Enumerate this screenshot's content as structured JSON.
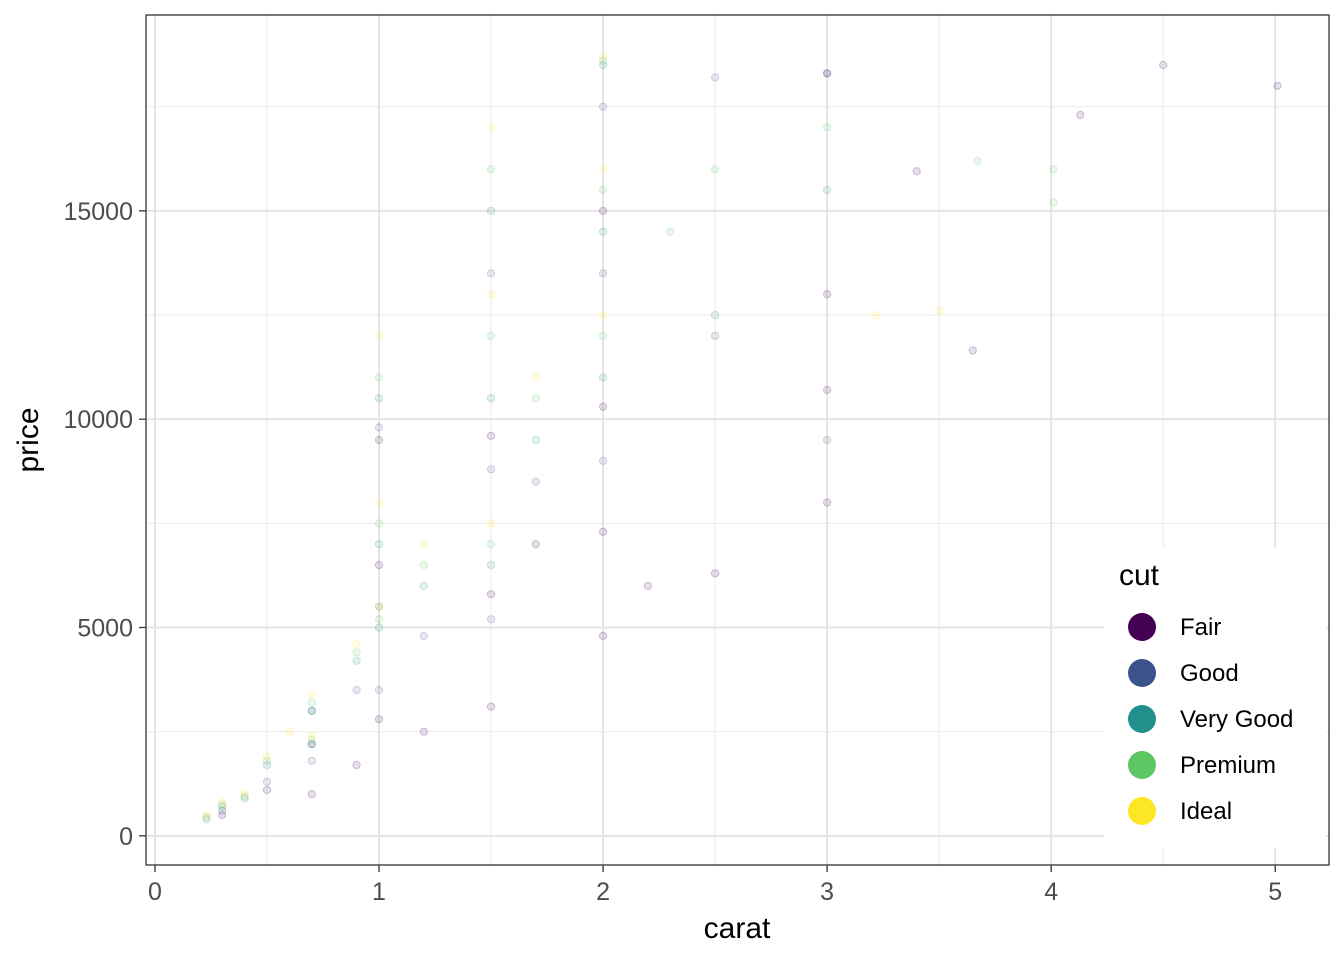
{
  "chart_data": {
    "type": "scatter",
    "title": "",
    "xlabel": "carat",
    "ylabel": "price",
    "xlim": [
      -0.04,
      5.24
    ],
    "ylim": [
      -700,
      19700
    ],
    "x_ticks": [
      0,
      1,
      2,
      3,
      4,
      5
    ],
    "x_tick_labels": [
      "0",
      "1",
      "2",
      "3",
      "4",
      "5"
    ],
    "y_ticks": [
      0,
      5000,
      10000,
      15000
    ],
    "y_tick_labels": [
      "0",
      "5000",
      "10000",
      "15000"
    ],
    "grid": true,
    "point_alpha": 0.12,
    "legend": {
      "title": "cut",
      "placement": "bottom-right inside",
      "entries": [
        {
          "name": "Fair",
          "color": "#440154"
        },
        {
          "name": "Good",
          "color": "#3B528B"
        },
        {
          "name": "Very Good",
          "color": "#21908C"
        },
        {
          "name": "Premium",
          "color": "#5DC863"
        },
        {
          "name": "Ideal",
          "color": "#FDE725"
        }
      ]
    },
    "series": [
      {
        "name": "Fair",
        "color": "#440154",
        "x": [
          0.3,
          0.5,
          0.7,
          0.7,
          0.9,
          1.0,
          1.0,
          1.0,
          1.2,
          1.5,
          1.5,
          1.5,
          1.7,
          2.0,
          2.0,
          2.0,
          2.0,
          2.2,
          2.5,
          3.0,
          3.0,
          3.0,
          3.0,
          3.4,
          3.65,
          4.13,
          4.5,
          5.01
        ],
        "y": [
          500,
          1100,
          1000,
          2200,
          1700,
          2800,
          6500,
          9500,
          2500,
          3100,
          5800,
          9600,
          7000,
          4800,
          7300,
          10300,
          15000,
          6000,
          6300,
          8000,
          10700,
          13000,
          18300,
          15950,
          11650,
          17300,
          18500,
          18000
        ]
      },
      {
        "name": "Good",
        "color": "#3B528B",
        "x": [
          0.3,
          0.5,
          0.7,
          0.7,
          0.9,
          1.0,
          1.0,
          1.0,
          1.2,
          1.5,
          1.5,
          1.5,
          1.7,
          2.0,
          2.0,
          2.0,
          2.5,
          2.5,
          3.0,
          3.0
        ],
        "y": [
          600,
          1300,
          1800,
          3000,
          3500,
          3500,
          5500,
          9800,
          4800,
          5200,
          8800,
          13500,
          8500,
          9000,
          13500,
          17500,
          12000,
          18200,
          9500,
          18300
        ]
      },
      {
        "name": "Very Good",
        "color": "#21908C",
        "x": [
          0.23,
          0.3,
          0.4,
          0.5,
          0.7,
          0.7,
          0.9,
          1.0,
          1.0,
          1.0,
          1.2,
          1.5,
          1.5,
          1.5,
          1.7,
          2.0,
          2.0,
          2.0,
          2.5,
          3.0
        ],
        "y": [
          400,
          700,
          900,
          1700,
          2200,
          3000,
          4200,
          5000,
          7000,
          10500,
          6000,
          6500,
          10500,
          15000,
          9500,
          11000,
          14500,
          18500,
          12500,
          15500
        ]
      },
      {
        "name": "Premium",
        "color": "#5DC863",
        "x": [
          0.23,
          0.3,
          0.4,
          0.5,
          0.7,
          0.7,
          0.9,
          1.0,
          1.0,
          1.0,
          1.2,
          1.5,
          1.5,
          1.5,
          1.7,
          2.0,
          2.0,
          2.0,
          2.3,
          2.5,
          3.0,
          3.67,
          4.01,
          4.01
        ],
        "y": [
          450,
          750,
          950,
          1800,
          2300,
          3200,
          4400,
          5200,
          7500,
          11000,
          6500,
          7000,
          12000,
          16000,
          10500,
          12000,
          15500,
          18600,
          14500,
          16000,
          17000,
          16200,
          15200,
          16000
        ]
      },
      {
        "name": "Ideal",
        "color": "#FDE725",
        "x": [
          0.23,
          0.3,
          0.4,
          0.5,
          0.6,
          0.7,
          0.7,
          0.9,
          1.0,
          1.0,
          1.0,
          1.2,
          1.5,
          1.5,
          1.5,
          1.7,
          2.0,
          2.0,
          2.0,
          3.22,
          3.5
        ],
        "y": [
          500,
          800,
          1000,
          1900,
          2500,
          2400,
          3400,
          4600,
          5500,
          8000,
          12000,
          7000,
          7500,
          13000,
          17000,
          11000,
          12500,
          16000,
          18700,
          12500,
          12600
        ]
      }
    ]
  }
}
